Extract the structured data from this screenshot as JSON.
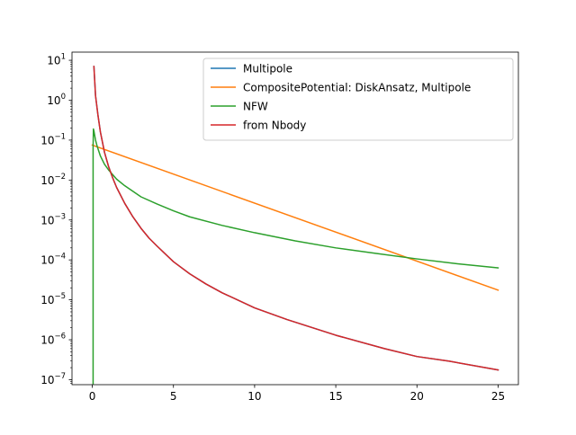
{
  "chart_data": {
    "type": "line",
    "title": "",
    "xlabel": "",
    "ylabel": "",
    "xlim": [
      -1.25,
      26.25
    ],
    "ylim": [
      7.5e-08,
      16.0
    ],
    "yscale": "log",
    "grid": false,
    "legend_position": "top-right",
    "x_ticks": [
      {
        "value": 0,
        "label": "0"
      },
      {
        "value": 5,
        "label": "5"
      },
      {
        "value": 10,
        "label": "10"
      },
      {
        "value": 15,
        "label": "15"
      },
      {
        "value": 20,
        "label": "20"
      },
      {
        "value": 25,
        "label": "25"
      }
    ],
    "y_ticks": [
      {
        "value": 10.0,
        "base": "10",
        "exp": "1"
      },
      {
        "value": 1.0,
        "base": "10",
        "exp": "0"
      },
      {
        "value": 0.1,
        "base": "10",
        "exp": "−1"
      },
      {
        "value": 0.01,
        "base": "10",
        "exp": "−2"
      },
      {
        "value": 0.001,
        "base": "10",
        "exp": "−3"
      },
      {
        "value": 0.0001,
        "base": "10",
        "exp": "−4"
      },
      {
        "value": 1e-05,
        "base": "10",
        "exp": "−5"
      },
      {
        "value": 1e-06,
        "base": "10",
        "exp": "−6"
      },
      {
        "value": 1e-07,
        "base": "10",
        "exp": "−7"
      }
    ],
    "series": [
      {
        "name": "Multipole",
        "color": "#1f77b4",
        "x": [
          0.1,
          0.2,
          0.35,
          0.5,
          0.75,
          1,
          1.25,
          1.5,
          2,
          2.5,
          3,
          3.5,
          4,
          5,
          6,
          7,
          8,
          10,
          12,
          15,
          18,
          20,
          22,
          25
        ],
        "y": [
          7.0,
          1.3,
          0.42,
          0.16,
          0.05,
          0.022,
          0.0115,
          0.0065,
          0.0026,
          0.0012,
          0.00062,
          0.00035,
          0.00022,
          9e-05,
          4.5e-05,
          2.5e-05,
          1.5e-05,
          6.3e-06,
          3.2e-06,
          1.3e-06,
          6e-07,
          3.8e-07,
          2.9e-07,
          1.75e-07
        ]
      },
      {
        "name": "CompositePotential: DiskAnsatz, Multipole",
        "color": "#ff7f0e",
        "x": [
          0,
          25
        ],
        "y": [
          0.075,
          1.75e-05
        ]
      },
      {
        "name": "NFW",
        "color": "#2ca02c",
        "x": [
          0.05,
          0.05,
          0.07,
          0.1,
          0.15,
          0.2,
          0.3,
          0.5,
          0.75,
          1,
          1.5,
          2,
          3,
          4,
          5,
          6,
          8,
          10,
          12.5,
          15,
          17.5,
          20,
          22.5,
          25
        ],
        "y": [
          8e-08,
          0.07,
          0.19,
          0.17,
          0.13,
          0.1,
          0.07,
          0.04,
          0.025,
          0.018,
          0.0105,
          0.0072,
          0.0038,
          0.0025,
          0.0017,
          0.0012,
          0.00073,
          0.00048,
          0.0003,
          0.0002,
          0.000145,
          0.000106,
          8e-05,
          6.3e-05
        ]
      },
      {
        "name": "from Nbody",
        "color": "#d62728",
        "x": [
          0.1,
          0.2,
          0.35,
          0.5,
          0.75,
          1,
          1.25,
          1.5,
          2,
          2.5,
          3,
          3.5,
          4,
          5,
          6,
          7,
          8,
          10,
          12,
          15,
          18,
          20,
          22,
          25
        ],
        "y": [
          7.0,
          1.3,
          0.42,
          0.16,
          0.05,
          0.022,
          0.0115,
          0.0065,
          0.0026,
          0.0012,
          0.00062,
          0.00035,
          0.00022,
          9e-05,
          4.5e-05,
          2.5e-05,
          1.5e-05,
          6.3e-06,
          3.2e-06,
          1.3e-06,
          6e-07,
          3.8e-07,
          2.9e-07,
          1.75e-07
        ]
      }
    ]
  }
}
